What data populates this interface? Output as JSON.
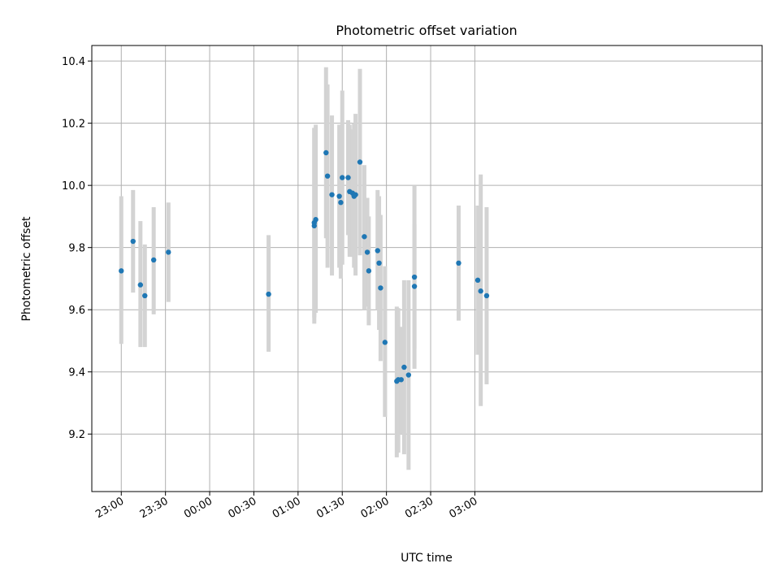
{
  "chart_data": {
    "type": "scatter",
    "title": "Photometric offset variation",
    "xlabel": "UTC time",
    "ylabel": "Photometric offset",
    "xlim_minutes_after_2300": [
      -20,
      435
    ],
    "ylim": [
      9.015,
      10.45
    ],
    "grid": true,
    "x_ticks": [
      "23:00",
      "23:30",
      "00:00",
      "00:30",
      "01:00",
      "01:30",
      "02:00",
      "02:30",
      "03:00"
    ],
    "y_ticks": [
      9.2,
      9.4,
      9.6,
      9.8,
      10.0,
      10.2,
      10.4
    ],
    "colors": {
      "marker": "#1f77b4",
      "errorbar": "#d3d3d3",
      "grid": "#b0b0b0"
    },
    "series": [
      {
        "points": [
          {
            "t": "23:00",
            "y": 9.725,
            "ylo": 9.49,
            "yhi": 9.965
          },
          {
            "t": "23:08",
            "y": 9.82,
            "ylo": 9.655,
            "yhi": 9.985
          },
          {
            "t": "23:13",
            "y": 9.68,
            "ylo": 9.48,
            "yhi": 9.885
          },
          {
            "t": "23:16",
            "y": 9.645,
            "ylo": 9.48,
            "yhi": 9.81
          },
          {
            "t": "23:22",
            "y": 9.76,
            "ylo": 9.585,
            "yhi": 9.93
          },
          {
            "t": "23:32",
            "y": 9.785,
            "ylo": 9.625,
            "yhi": 9.945
          },
          {
            "t": "00:40",
            "y": 9.65,
            "ylo": 9.465,
            "yhi": 9.84
          },
          {
            "t": "01:11",
            "y": 9.87,
            "ylo": 9.555,
            "yhi": 10.185
          },
          {
            "t": "01:11",
            "y": 9.88,
            "ylo": 9.575,
            "yhi": 10.185
          },
          {
            "t": "01:12",
            "y": 9.89,
            "ylo": 9.59,
            "yhi": 10.195
          },
          {
            "t": "01:19",
            "y": 10.105,
            "ylo": 9.83,
            "yhi": 10.38
          },
          {
            "t": "01:20",
            "y": 10.03,
            "ylo": 9.735,
            "yhi": 10.325
          },
          {
            "t": "01:23",
            "y": 9.97,
            "ylo": 9.71,
            "yhi": 10.225
          },
          {
            "t": "01:28",
            "y": 9.965,
            "ylo": 9.735,
            "yhi": 10.195
          },
          {
            "t": "01:29",
            "y": 9.945,
            "ylo": 9.7,
            "yhi": 10.19
          },
          {
            "t": "01:30",
            "y": 10.025,
            "ylo": 9.745,
            "yhi": 10.305
          },
          {
            "t": "01:34",
            "y": 10.025,
            "ylo": 9.84,
            "yhi": 10.21
          },
          {
            "t": "01:35",
            "y": 9.98,
            "ylo": 9.77,
            "yhi": 10.195
          },
          {
            "t": "01:37",
            "y": 9.975,
            "ylo": 9.77,
            "yhi": 10.18
          },
          {
            "t": "01:38",
            "y": 9.965,
            "ylo": 9.735,
            "yhi": 10.2
          },
          {
            "t": "01:39",
            "y": 9.97,
            "ylo": 9.71,
            "yhi": 10.23
          },
          {
            "t": "01:42",
            "y": 10.075,
            "ylo": 9.775,
            "yhi": 10.375
          },
          {
            "t": "01:45",
            "y": 9.835,
            "ylo": 9.6,
            "yhi": 10.065
          },
          {
            "t": "01:47",
            "y": 9.785,
            "ylo": 9.61,
            "yhi": 9.96
          },
          {
            "t": "01:48",
            "y": 9.725,
            "ylo": 9.55,
            "yhi": 9.9
          },
          {
            "t": "01:54",
            "y": 9.79,
            "ylo": 9.6,
            "yhi": 9.985
          },
          {
            "t": "01:55",
            "y": 9.75,
            "ylo": 9.535,
            "yhi": 9.965
          },
          {
            "t": "01:56",
            "y": 9.67,
            "ylo": 9.435,
            "yhi": 9.905
          },
          {
            "t": "01:59",
            "y": 9.495,
            "ylo": 9.255,
            "yhi": 9.74
          },
          {
            "t": "02:07",
            "y": 9.37,
            "ylo": 9.125,
            "yhi": 9.61
          },
          {
            "t": "02:08",
            "y": 9.375,
            "ylo": 9.14,
            "yhi": 9.605
          },
          {
            "t": "02:10",
            "y": 9.375,
            "ylo": 9.2,
            "yhi": 9.545
          },
          {
            "t": "02:12",
            "y": 9.415,
            "ylo": 9.135,
            "yhi": 9.695
          },
          {
            "t": "02:15",
            "y": 9.39,
            "ylo": 9.085,
            "yhi": 9.695
          },
          {
            "t": "02:19",
            "y": 9.705,
            "ylo": 9.41,
            "yhi": 10.0
          },
          {
            "t": "02:19",
            "y": 9.675,
            "ylo": 9.475,
            "yhi": 9.875
          },
          {
            "t": "02:49",
            "y": 9.75,
            "ylo": 9.565,
            "yhi": 9.935
          },
          {
            "t": "03:02",
            "y": 9.695,
            "ylo": 9.455,
            "yhi": 9.935
          },
          {
            "t": "03:04",
            "y": 9.66,
            "ylo": 9.29,
            "yhi": 10.035
          },
          {
            "t": "03:08",
            "y": 9.645,
            "ylo": 9.36,
            "yhi": 9.93
          }
        ]
      }
    ]
  }
}
